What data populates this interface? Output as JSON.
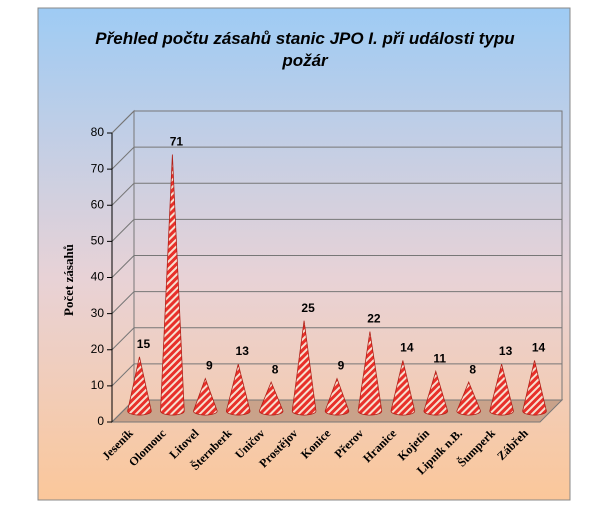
{
  "chart_data": {
    "type": "cone3d",
    "title": "Přehled počtu zásahů stanic JPO I. při události typu požár",
    "y_label": "Počet zásahů",
    "categories": [
      "Jeseník",
      "Olomouc",
      "Litovel",
      "Šternberk",
      "Uničov",
      "Prostějov",
      "Konice",
      "Přerov",
      "Hranice",
      "Kojetín",
      "Lipník n.B.",
      "Šumperk",
      "Zábřeh"
    ],
    "values": [
      15,
      71,
      9,
      13,
      8,
      25,
      9,
      22,
      14,
      11,
      8,
      13,
      14
    ],
    "color": "#e8302a",
    "ylim": [
      0,
      80
    ],
    "yticks": [
      0,
      10,
      20,
      30,
      40,
      50,
      60,
      70,
      80
    ],
    "grid": true
  }
}
